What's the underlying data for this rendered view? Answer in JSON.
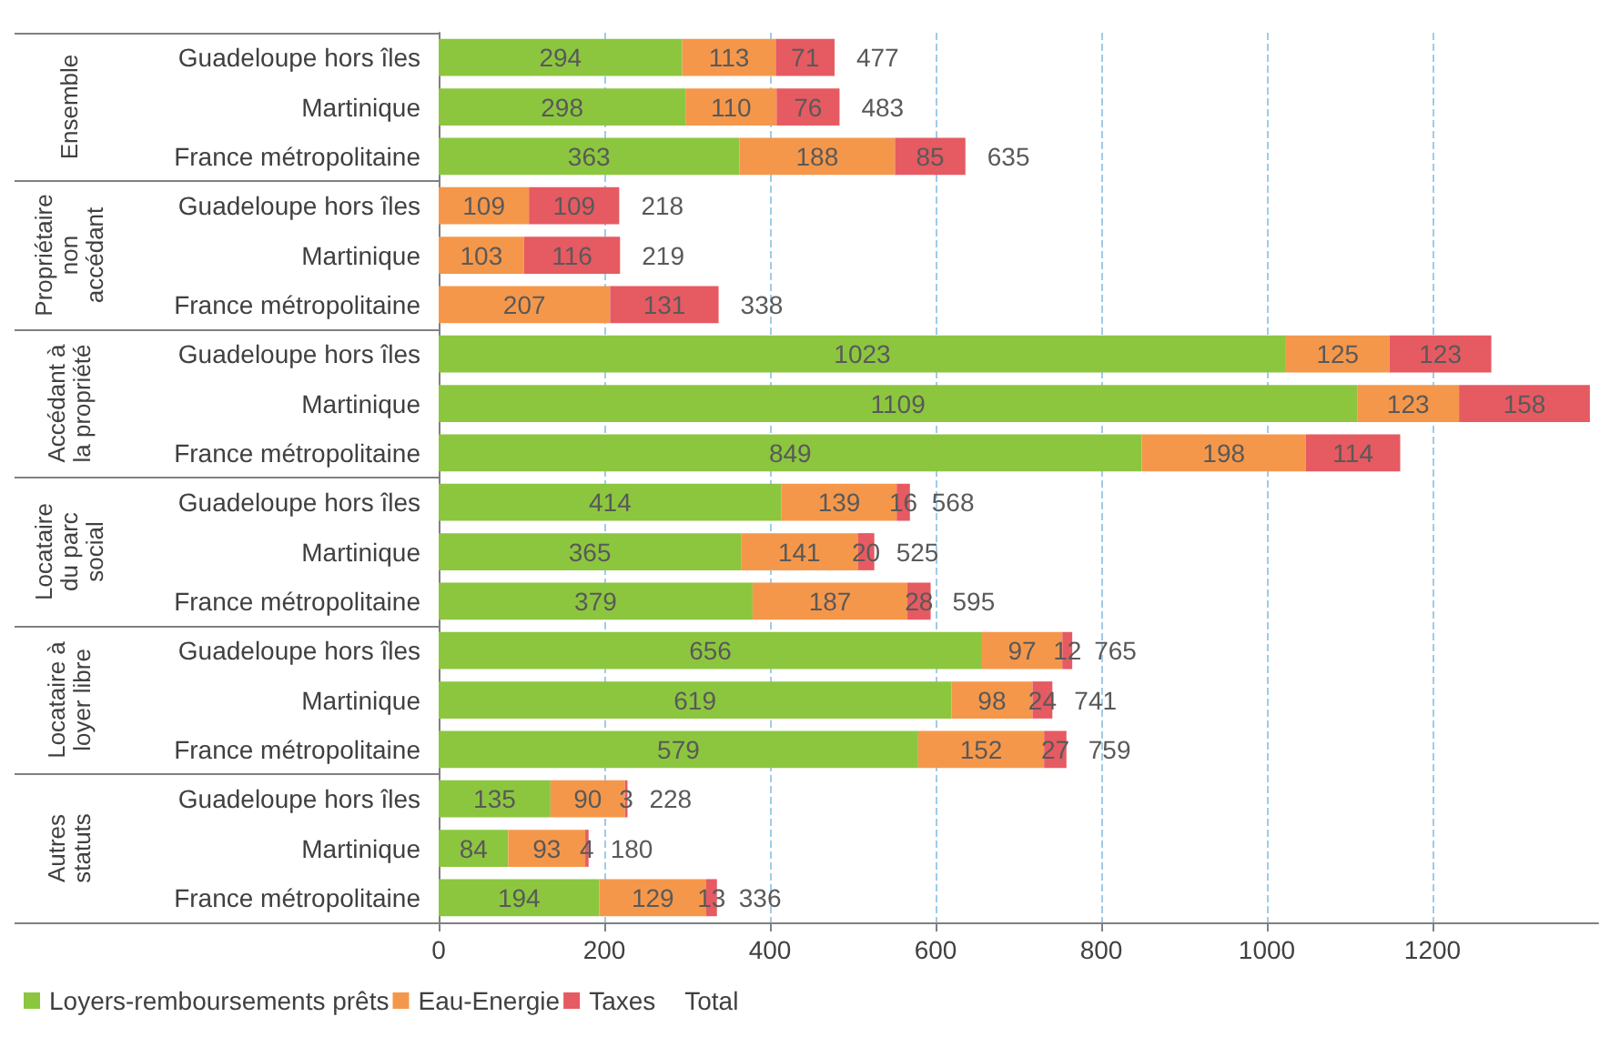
{
  "chart_data": {
    "type": "bar",
    "orientation": "horizontal",
    "stacked": true,
    "categories": [
      "Guadeloupe hors îles",
      "Martinique",
      "France métropolitaine",
      "Guadeloupe hors îles",
      "Martinique",
      "France métropolitaine",
      "Guadeloupe hors îles",
      "Martinique",
      "France métropolitaine",
      "Guadeloupe hors îles",
      "Martinique",
      "France métropolitaine",
      "Guadeloupe hors îles",
      "Martinique",
      "France métropolitaine",
      "Guadeloupe hors îles",
      "Martinique",
      "France métropolitaine"
    ],
    "annotations": [
      "Ensemble",
      "Propriétaire\nnon\naccédant",
      "Accédant à\nla propriété",
      "Locataire\ndu parc\nsocial",
      "Locataire à\nloyer libre",
      "Autres\nstatuts"
    ],
    "series": [
      {
        "name": "Loyers-remboursements prêts",
        "color": "#8cc63f",
        "values": [
          294,
          298,
          363,
          null,
          null,
          null,
          1023,
          1109,
          849,
          414,
          365,
          379,
          656,
          619,
          579,
          135,
          84,
          194
        ]
      },
      {
        "name": "Eau-Energie",
        "color": "#f5974a",
        "values": [
          113,
          110,
          188,
          109,
          103,
          207,
          125,
          123,
          198,
          139,
          141,
          187,
          97,
          98,
          152,
          90,
          93,
          129
        ]
      },
      {
        "name": "Taxes",
        "color": "#e65a62",
        "values": [
          71,
          76,
          85,
          109,
          116,
          131,
          123,
          158,
          114,
          16,
          20,
          28,
          12,
          24,
          27,
          3,
          4,
          13
        ]
      },
      {
        "name": "Total",
        "values": [
          null,
          null,
          null,
          null,
          null,
          null,
          null,
          null,
          null,
          null,
          null,
          null,
          null,
          null,
          null,
          null,
          null,
          null
        ]
      }
    ],
    "totals": [
      "477",
      "483",
      "635",
      "218",
      "219",
      "338",
      null,
      null,
      null,
      "568",
      "525",
      "595",
      "765",
      "741",
      "759",
      "228",
      "180",
      "336"
    ],
    "data_labels": true,
    "xlim": [
      0,
      1400
    ],
    "xticks": [
      0,
      200,
      400,
      600,
      800,
      1000,
      1200
    ],
    "grid": "x",
    "legend": "bottom left"
  }
}
